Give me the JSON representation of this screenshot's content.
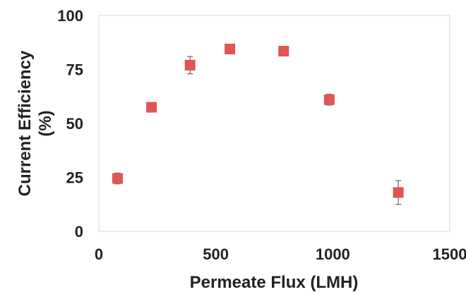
{
  "chart_data": {
    "type": "scatter",
    "title": "",
    "xlabel": "Permeate Flux (LMH)",
    "ylabel_lines": [
      "Current Efficiency",
      "(%)"
    ],
    "xlim": [
      0,
      1500
    ],
    "ylim": [
      0,
      100
    ],
    "x_ticks": [
      0,
      500,
      1000,
      1500
    ],
    "x_tick_labels": [
      "0",
      "500",
      "1000",
      "1500"
    ],
    "y_ticks": [
      0,
      25,
      50,
      75,
      100
    ],
    "y_tick_labels": [
      "0",
      "25",
      "50",
      "75",
      "100"
    ],
    "grid": false,
    "marker": "square",
    "series": [
      {
        "color": "#e05555",
        "points": [
          {
            "x": 80,
            "y": 24.5,
            "err": 2.5
          },
          {
            "x": 225,
            "y": 57.5,
            "err": 1.0
          },
          {
            "x": 390,
            "y": 77,
            "err": 4.0
          },
          {
            "x": 560,
            "y": 84.5,
            "err": 1.5
          },
          {
            "x": 790,
            "y": 83.5,
            "err": 0.5
          },
          {
            "x": 985,
            "y": 61,
            "err": 2.5
          },
          {
            "x": 1280,
            "y": 18,
            "err": 5.5
          }
        ]
      }
    ]
  }
}
